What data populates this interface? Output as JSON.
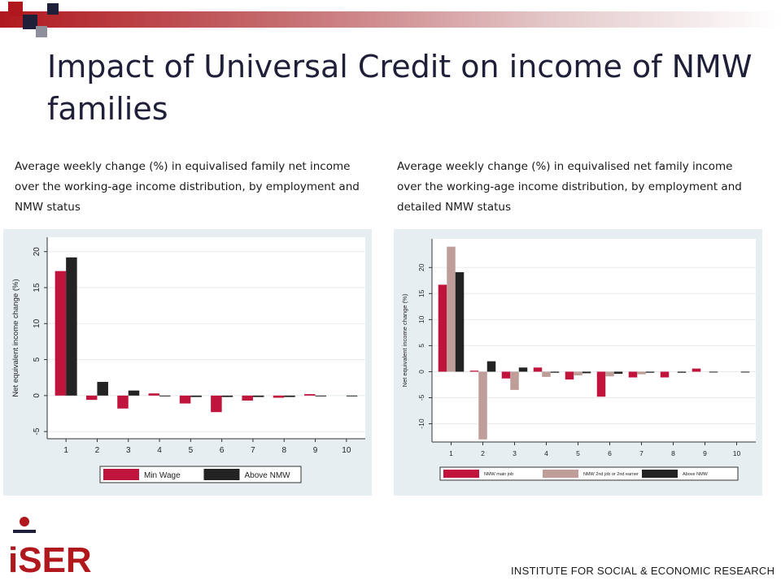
{
  "slide": {
    "title": "Impact of Universal Credit on income of NMW families",
    "caption_left": "Average weekly change (%) in equivalised family net income over the working-age income distribution, by employment and NMW status",
    "caption_right": "Average weekly change (%) in equivalised net family income over the working-age income distribution, by employment and detailed NMW status",
    "footer": "INSTITUTE FOR SOCIAL & ECONOMIC RESEARCH",
    "logo_text": "iSER",
    "brand_red": "#b0181e",
    "brand_navy": "#1f1f3a"
  },
  "chart_data": [
    {
      "type": "bar",
      "title": "",
      "xlabel": "",
      "ylabel": "Net equivalent income change (%)",
      "categories": [
        "1",
        "2",
        "3",
        "4",
        "5",
        "6",
        "7",
        "8",
        "9",
        "10"
      ],
      "ylim": [
        -6,
        22
      ],
      "yticks": [
        -5,
        0,
        5,
        10,
        15,
        20
      ],
      "grid": true,
      "legend": "bottom",
      "series": [
        {
          "name": "Min Wage",
          "color": "#c0143c",
          "values": [
            17.3,
            -0.6,
            -1.8,
            0.3,
            -1.1,
            -2.3,
            -0.7,
            -0.3,
            0.2,
            0
          ]
        },
        {
          "name": "Above NMW",
          "color": "#232323",
          "values": [
            19.2,
            1.9,
            0.7,
            -0.1,
            -0.2,
            -0.2,
            -0.2,
            -0.2,
            -0.1,
            -0.1
          ]
        }
      ]
    },
    {
      "type": "bar",
      "title": "",
      "xlabel": "",
      "ylabel": "Net equivalent income change (%)",
      "categories": [
        "1",
        "2",
        "3",
        "4",
        "5",
        "6",
        "7",
        "8",
        "9",
        "10"
      ],
      "ylim": [
        -13.5,
        25.5
      ],
      "yticks": [
        -10,
        -5,
        0,
        5,
        10,
        15,
        20
      ],
      "grid": true,
      "legend": "bottom",
      "series": [
        {
          "name": "NMW main job",
          "color": "#c0143c",
          "values": [
            16.7,
            0.2,
            -1.3,
            0.8,
            -1.5,
            -4.8,
            -1.1,
            -1.1,
            0.6,
            0
          ]
        },
        {
          "name": "NMW 2nd job or 2nd earner",
          "color": "#bf9d98",
          "values": [
            24.0,
            -13.0,
            -3.5,
            -1.0,
            -0.7,
            -0.9,
            -0.5,
            0,
            0,
            0
          ]
        },
        {
          "name": "Above NMW",
          "color": "#232323",
          "values": [
            19.1,
            2.0,
            0.8,
            -0.2,
            -0.3,
            -0.4,
            -0.2,
            -0.2,
            -0.1,
            -0.1
          ]
        }
      ]
    }
  ]
}
